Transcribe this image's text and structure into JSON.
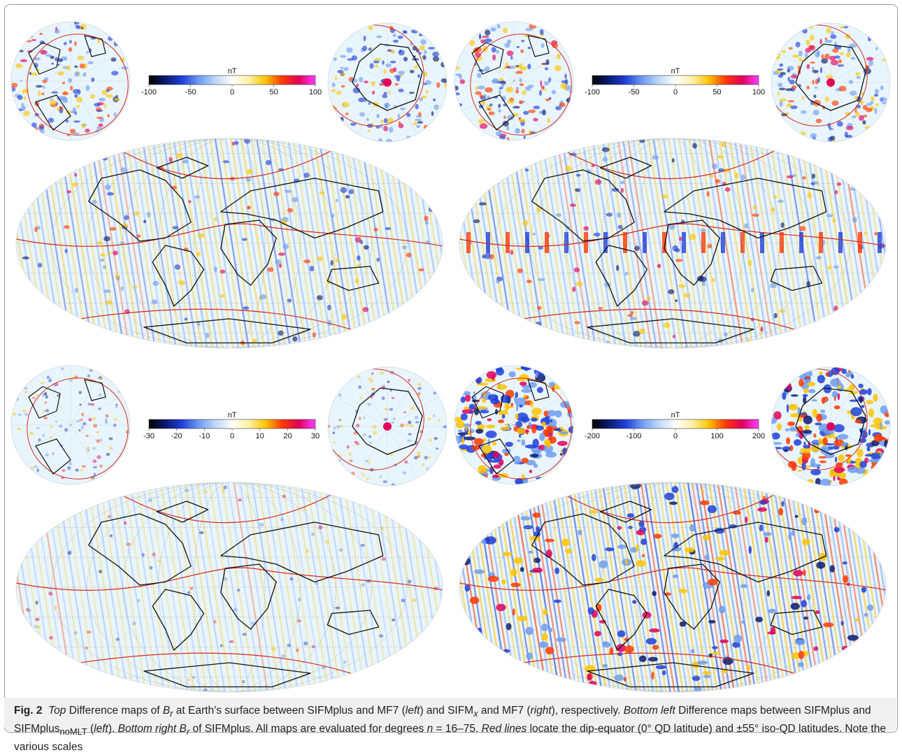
{
  "figure": {
    "panels": [
      {
        "id": "top-left",
        "unit": "nT",
        "ticks": [
          "-100",
          "-50",
          "0",
          "50",
          "100"
        ],
        "intensity": 0.55,
        "band": false
      },
      {
        "id": "top-right",
        "unit": "nT",
        "ticks": [
          "-100",
          "-50",
          "0",
          "50",
          "100"
        ],
        "intensity": 0.6,
        "band": true
      },
      {
        "id": "bottom-left",
        "unit": "nT",
        "ticks": [
          "-30",
          "-20",
          "-10",
          "0",
          "10",
          "20",
          "30"
        ],
        "intensity": 0.25,
        "band": false
      },
      {
        "id": "bottom-right",
        "unit": "nT",
        "ticks": [
          "-200",
          "-100",
          "0",
          "100",
          "200"
        ],
        "intensity": 1.0,
        "band": false
      }
    ],
    "colormap": [
      "#000000",
      "#0b1a6e",
      "#1f3fd9",
      "#6f9cf0",
      "#bcd8f7",
      "#ffffff",
      "#fff2a8",
      "#ffc400",
      "#ff3a00",
      "#e0005a",
      "#ff3fff"
    ],
    "accent_color": "#d42a1f"
  },
  "caption": {
    "label": "Fig. 2",
    "seg1_italic": "Top",
    "seg2": " Difference maps of ",
    "br_base": "B",
    "br_sub": "r",
    "seg3": " at Earth’s surface between SIFMplus and MF7 (",
    "left": "left",
    "seg4": ") and SIFM",
    "sifm_sub": "x",
    "seg5": " and MF7 (",
    "right": "right",
    "seg6": "), respectively. ",
    "bottom_left": "Bottom left",
    "seg7": " Difference maps between SIFMplus and SIFMplus",
    "nomlt_sub": "noMLT",
    "seg8": " (",
    "seg9": "). ",
    "bottom_right": "Bottom right",
    "seg10": " of SIFMplus. All maps are evaluated for degrees ",
    "n_var": "n",
    "seg11": " = 16–75. ",
    "red_lines": "Red lines",
    "seg12": " locate the dip-equator (0° QD latitude) and ±55° iso-QD latitudes. Note the various scales"
  }
}
